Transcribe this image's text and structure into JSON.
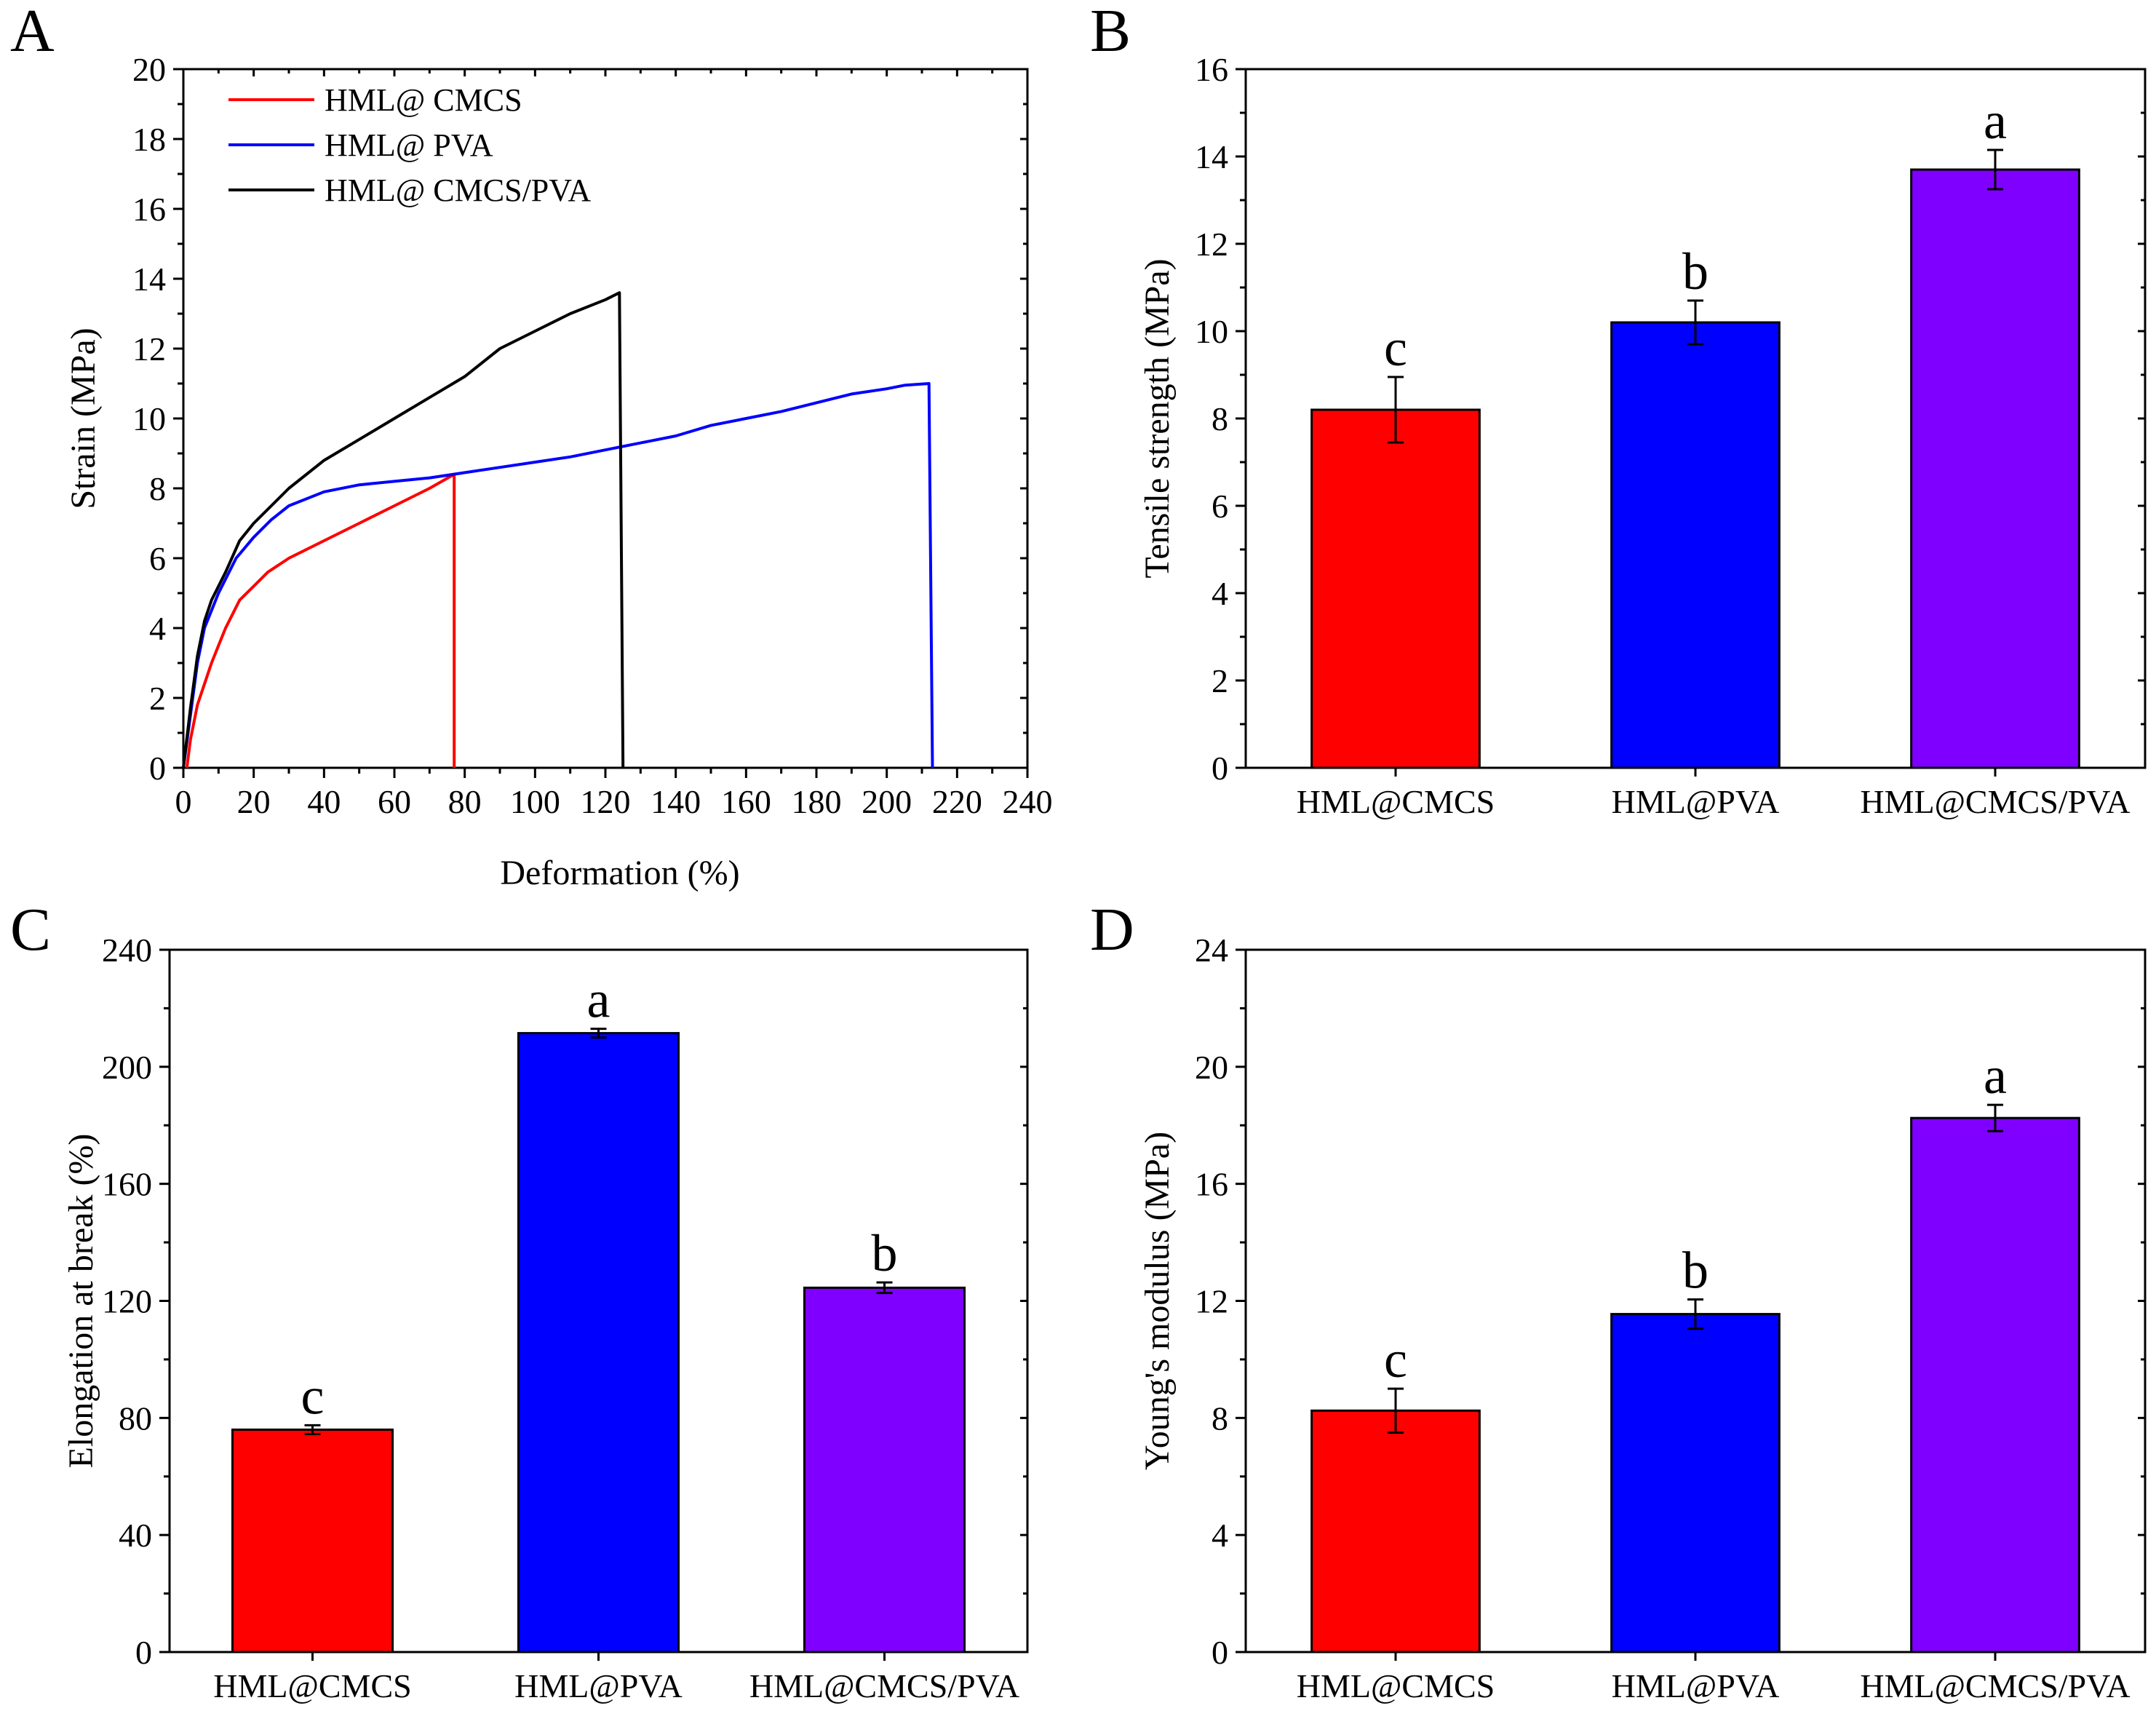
{
  "chart_data": [
    {
      "id": "A",
      "type": "line",
      "panel_label": "A",
      "xlabel": "Deformation (%)",
      "ylabel": "Strain (MPa)",
      "xlim": [
        0,
        240
      ],
      "ylim": [
        0,
        20
      ],
      "xticks": [
        0,
        20,
        40,
        60,
        80,
        100,
        120,
        140,
        160,
        180,
        200,
        220,
        240
      ],
      "yticks": [
        0,
        2,
        4,
        6,
        8,
        10,
        12,
        14,
        16,
        18,
        20
      ],
      "legend_position": "top-left",
      "series": [
        {
          "name": "HML@ CMCS",
          "color": "#ff0000",
          "points": [
            [
              1,
              0
            ],
            [
              2,
              0.8
            ],
            [
              4,
              1.8
            ],
            [
              6,
              2.4
            ],
            [
              8,
              3.0
            ],
            [
              10,
              3.5
            ],
            [
              12,
              4.0
            ],
            [
              14,
              4.4
            ],
            [
              16,
              4.8
            ],
            [
              20,
              5.2
            ],
            [
              24,
              5.6
            ],
            [
              30,
              6.0
            ],
            [
              40,
              6.5
            ],
            [
              50,
              7.0
            ],
            [
              60,
              7.5
            ],
            [
              70,
              8.0
            ],
            [
              77,
              8.4
            ],
            [
              77,
              0
            ]
          ]
        },
        {
          "name": "HML@ PVA",
          "color": "#0000ff",
          "points": [
            [
              0,
              0
            ],
            [
              2,
              1.5
            ],
            [
              4,
              3.0
            ],
            [
              6,
              4.0
            ],
            [
              10,
              5.0
            ],
            [
              15,
              6.0
            ],
            [
              20,
              6.6
            ],
            [
              25,
              7.1
            ],
            [
              30,
              7.5
            ],
            [
              40,
              7.9
            ],
            [
              50,
              8.1
            ],
            [
              60,
              8.2
            ],
            [
              70,
              8.3
            ],
            [
              80,
              8.45
            ],
            [
              90,
              8.6
            ],
            [
              100,
              8.75
            ],
            [
              110,
              8.9
            ],
            [
              120,
              9.1
            ],
            [
              130,
              9.3
            ],
            [
              140,
              9.5
            ],
            [
              150,
              9.8
            ],
            [
              160,
              10.0
            ],
            [
              170,
              10.2
            ],
            [
              180,
              10.45
            ],
            [
              190,
              10.7
            ],
            [
              200,
              10.85
            ],
            [
              205,
              10.95
            ],
            [
              212,
              11.0
            ],
            [
              213,
              0
            ]
          ]
        },
        {
          "name": "HML@ CMCS/PVA",
          "color": "#000000",
          "points": [
            [
              0,
              0
            ],
            [
              2,
              1.7
            ],
            [
              4,
              3.2
            ],
            [
              6,
              4.2
            ],
            [
              8,
              4.8
            ],
            [
              12,
              5.6
            ],
            [
              16,
              6.5
            ],
            [
              20,
              7.0
            ],
            [
              30,
              8.0
            ],
            [
              40,
              8.8
            ],
            [
              50,
              9.4
            ],
            [
              60,
              10.0
            ],
            [
              70,
              10.6
            ],
            [
              80,
              11.2
            ],
            [
              90,
              12.0
            ],
            [
              100,
              12.5
            ],
            [
              110,
              13.0
            ],
            [
              120,
              13.4
            ],
            [
              124,
              13.6
            ],
            [
              125,
              0
            ]
          ]
        }
      ]
    },
    {
      "id": "B",
      "type": "bar",
      "panel_label": "B",
      "categories": [
        "HML@CMCS",
        "HML@PVA",
        "HML@CMCS/PVA"
      ],
      "values": [
        8.2,
        10.2,
        13.7
      ],
      "errors": [
        0.75,
        0.5,
        0.45
      ],
      "significance": [
        "c",
        "b",
        "a"
      ],
      "colors": [
        "#ff0000",
        "#0000ff",
        "#8000ff"
      ],
      "ylabel": "Tensile strength (MPa)",
      "xlabel": "",
      "ylim": [
        0,
        16
      ],
      "yticks": [
        0,
        2,
        4,
        6,
        8,
        10,
        12,
        14,
        16
      ]
    },
    {
      "id": "C",
      "type": "bar",
      "panel_label": "C",
      "categories": [
        "HML@CMCS",
        "HML@PVA",
        "HML@CMCS/PVA"
      ],
      "values": [
        76,
        211.5,
        124.5
      ],
      "errors": [
        1.5,
        1.5,
        1.8
      ],
      "significance": [
        "c",
        "a",
        "b"
      ],
      "colors": [
        "#ff0000",
        "#0000ff",
        "#8000ff"
      ],
      "ylabel": "Elongation at break (%)",
      "xlabel": "",
      "ylim": [
        0,
        240
      ],
      "yticks": [
        0,
        40,
        80,
        120,
        160,
        200,
        240
      ]
    },
    {
      "id": "D",
      "type": "bar",
      "panel_label": "D",
      "categories": [
        "HML@CMCS",
        "HML@PVA",
        "HML@CMCS/PVA"
      ],
      "values": [
        8.25,
        11.55,
        18.25
      ],
      "errors": [
        0.75,
        0.5,
        0.45
      ],
      "significance": [
        "c",
        "b",
        "a"
      ],
      "colors": [
        "#ff0000",
        "#0000ff",
        "#8000ff"
      ],
      "ylabel": "Young's modulus (MPa)",
      "xlabel": "",
      "ylim": [
        0,
        24
      ],
      "yticks": [
        0,
        4,
        8,
        12,
        16,
        20,
        24
      ]
    }
  ]
}
